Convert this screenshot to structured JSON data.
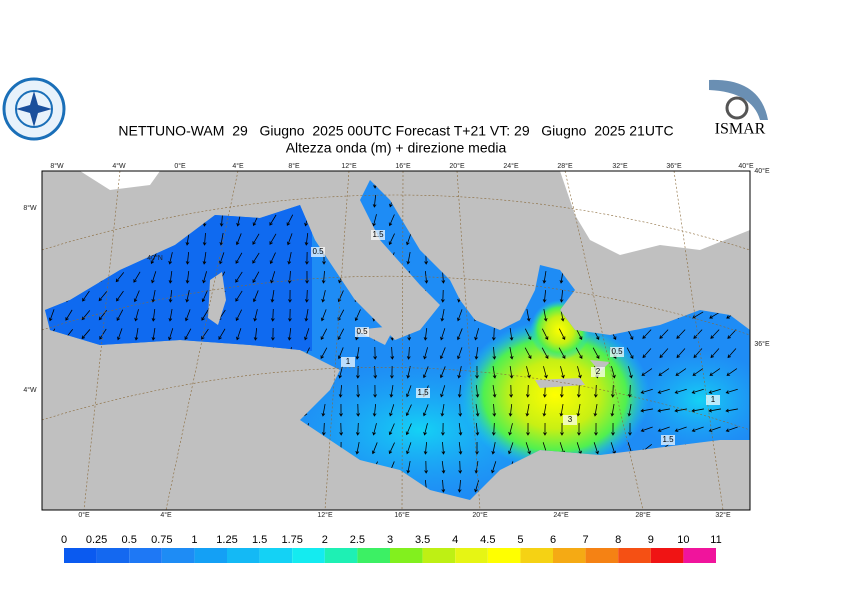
{
  "header": {
    "title": "NETTUNO-WAM  29   Giugno  2025 00UTC Forecast T+21 VT: 29   Giugno  2025 21UTC",
    "subtitle": "Altezza onda (m) + direzione media"
  },
  "logos": {
    "right": "ISMAR"
  },
  "map": {
    "top_labels": [
      "8°W",
      "4°W",
      "0°E",
      "4°E",
      "8°E",
      "12°E",
      "16°E",
      "20°E",
      "24°E",
      "28°E",
      "32°E",
      "36°E",
      "40°E"
    ],
    "bottom_labels": [
      "0°E",
      "4°E",
      "12°E",
      "16°E",
      "20°E",
      "24°E",
      "28°E",
      "32°E"
    ],
    "left_labels": [
      "8°W",
      "4°W"
    ],
    "right_labels": [
      "40°E",
      "36°E"
    ],
    "inner_labels": [
      "40°N"
    ],
    "contour_labels": [
      "0.5",
      "1.5",
      "1",
      "1.5",
      "0.5",
      "2",
      "3",
      "1",
      "1.5",
      "0.5"
    ]
  },
  "legend": {
    "labels": [
      "0",
      "0.25",
      "0.5",
      "0.75",
      "1",
      "1.25",
      "1.5",
      "1.75",
      "2",
      "2.5",
      "3",
      "3.5",
      "4",
      "4.5",
      "5",
      "6",
      "7",
      "8",
      "9",
      "10",
      "11"
    ],
    "colors": [
      "#0a5af0",
      "#1468f0",
      "#1e78f5",
      "#1e8cf5",
      "#14a0f5",
      "#14b9f5",
      "#14d2f5",
      "#14ebf0",
      "#1ef0b4",
      "#3cf064",
      "#82f01e",
      "#bef014",
      "#e6f514",
      "#ffff00",
      "#f5d214",
      "#f5aa14",
      "#f58214",
      "#f55014",
      "#f01414",
      "#f0149c"
    ]
  }
}
